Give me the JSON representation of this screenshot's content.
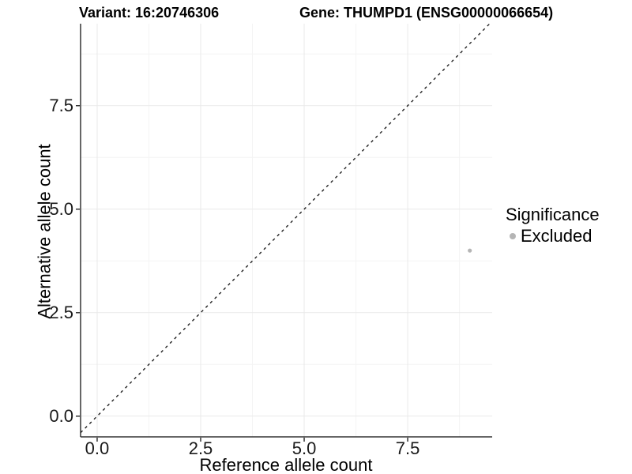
{
  "chart_data": {
    "type": "scatter",
    "title_left": "Variant: 16:20746306",
    "title_right": "Gene: THUMPD1 (ENSG00000066654)",
    "xlabel": "Reference allele count",
    "ylabel": "Alternative allele count",
    "xlim": [
      -0.4,
      9.54
    ],
    "ylim": [
      -0.5,
      9.48
    ],
    "x_ticks": [
      {
        "value": 0,
        "label": "0.0"
      },
      {
        "value": 2.5,
        "label": "2.5"
      },
      {
        "value": 5,
        "label": "5.0"
      },
      {
        "value": 7.5,
        "label": "7.5"
      }
    ],
    "y_ticks": [
      {
        "value": 0,
        "label": "0.0"
      },
      {
        "value": 2.5,
        "label": "2.5"
      },
      {
        "value": 5,
        "label": "5.0"
      },
      {
        "value": 7.5,
        "label": "7.5"
      }
    ],
    "x_minor_ticks": [
      1.25,
      3.75,
      6.25,
      8.75
    ],
    "y_minor_ticks": [
      1.25,
      3.75,
      6.25,
      8.75
    ],
    "grid": {
      "show": true,
      "major_color": "#e9e9e9",
      "minor_color": "#f4f4f4"
    },
    "axis_color": "#333333",
    "reference_line": {
      "type": "identity",
      "style": "dashed",
      "dash": "3.5,4.5",
      "color": "#1f1f1f",
      "width": 1.4
    },
    "series": [
      {
        "name": "Excluded",
        "color": "#b5b5b5",
        "point_radius": 2.6,
        "points": [
          {
            "x": 9,
            "y": 4
          }
        ]
      }
    ],
    "legend": {
      "title": "Significance",
      "position": "right",
      "items": [
        {
          "label": "Excluded",
          "color": "#b5b5b5",
          "marker": "circle"
        }
      ]
    }
  }
}
